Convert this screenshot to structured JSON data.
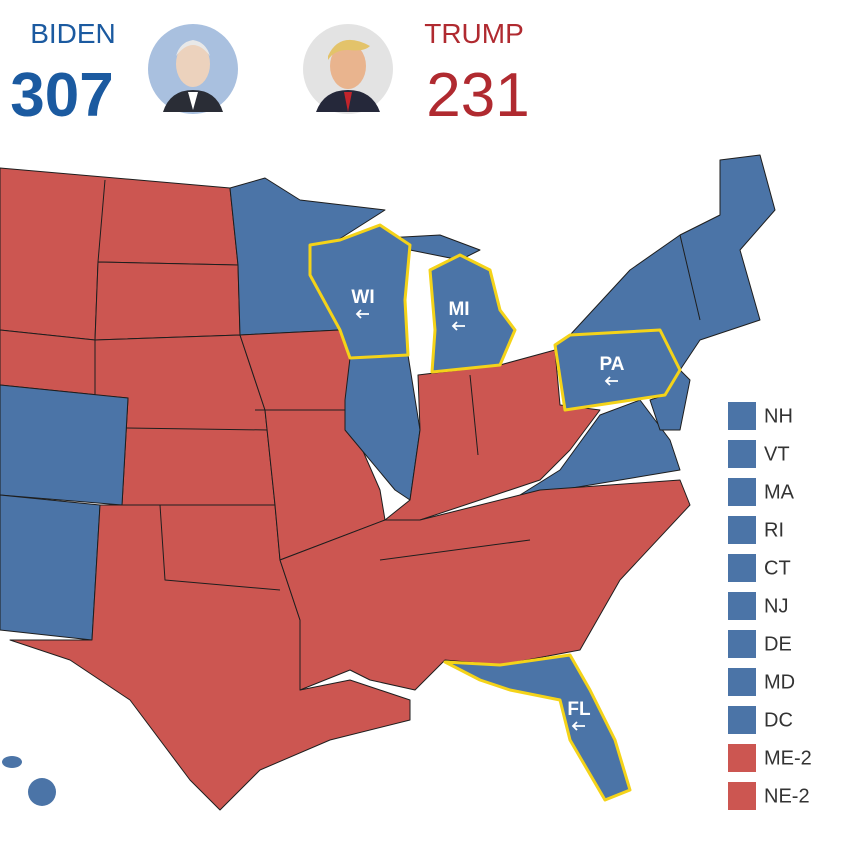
{
  "header": {
    "candidates": [
      {
        "name": "BIDEN",
        "votes": 307,
        "color": "#1b5aa0"
      },
      {
        "name": "TRUMP",
        "votes": 231,
        "color": "#b02a30"
      }
    ]
  },
  "map": {
    "flipped_states": [
      {
        "label": "WI"
      },
      {
        "label": "MI"
      },
      {
        "label": "PA"
      },
      {
        "label": "FL"
      }
    ],
    "legend": [
      {
        "label": "NH",
        "color": "#4b74a7"
      },
      {
        "label": "VT",
        "color": "#4b74a7"
      },
      {
        "label": "MA",
        "color": "#4b74a7"
      },
      {
        "label": "RI",
        "color": "#4b74a7"
      },
      {
        "label": "CT",
        "color": "#4b74a7"
      },
      {
        "label": "NJ",
        "color": "#4b74a7"
      },
      {
        "label": "DE",
        "color": "#4b74a7"
      },
      {
        "label": "MD",
        "color": "#4b74a7"
      },
      {
        "label": "DC",
        "color": "#4b74a7"
      },
      {
        "label": "ME-2",
        "color": "#cc5651"
      },
      {
        "label": "NE-2",
        "color": "#cc5651"
      }
    ]
  }
}
